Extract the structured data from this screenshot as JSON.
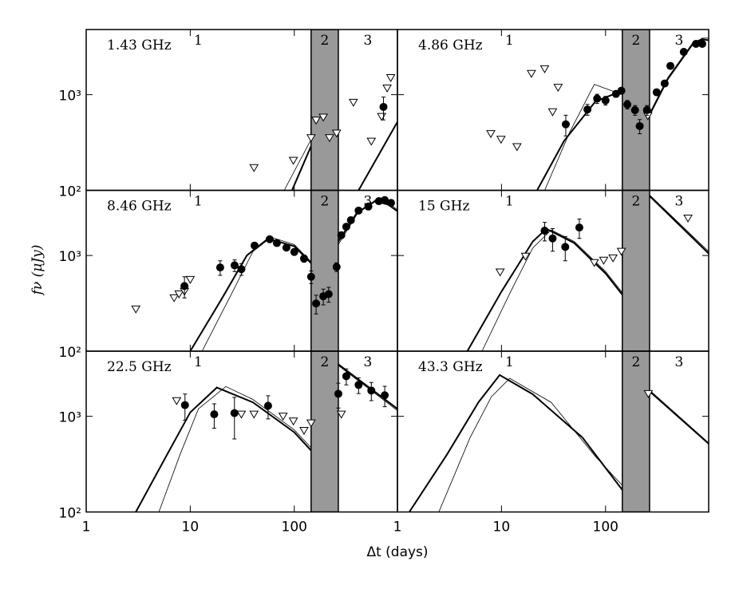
{
  "x_label": "Δt (days)",
  "y_label": "fν (μJy)",
  "chart_data": [
    {
      "type": "scatter",
      "title": "1.43 GHz",
      "xscale": "log",
      "yscale": "log",
      "xlim": [
        1,
        980
      ],
      "ylim": [
        100,
        4800
      ],
      "xticks": [
        1,
        10,
        100
      ],
      "yticks": [
        {
          "value": 100,
          "label": "10²"
        },
        {
          "value": 1000,
          "label": "10³"
        }
      ],
      "band": [
        145,
        265
      ],
      "band_color": "#999999",
      "region_labels": [
        "1",
        "2",
        "3"
      ],
      "detections": {
        "x": [
          720
        ],
        "values": [
          745
        ],
        "errors": [
          200
        ]
      },
      "upper_limits": {
        "x": [
          41,
          98,
          145,
          162,
          190,
          218,
          255,
          370,
          550,
          690,
          780,
          845
        ],
        "values": [
          172,
          205,
          354,
          540,
          580,
          354,
          395,
          830,
          325,
          590,
          1170,
          1500
        ]
      },
      "models": [
        {
          "x": [
            95,
            145
          ],
          "values": [
            100,
            290
          ],
          "width": 2
        },
        {
          "x": [
            80,
            145
          ],
          "values": [
            100,
            340
          ],
          "width": 0.8
        },
        {
          "x": [
            415,
            980
          ],
          "values": [
            100,
            520
          ],
          "width": 2
        }
      ]
    },
    {
      "type": "scatter",
      "title": "4.86 GHz",
      "xscale": "log",
      "yscale": "log",
      "xlim": [
        1,
        980
      ],
      "ylim": [
        100,
        4800
      ],
      "xticks": [
        1,
        10,
        100
      ],
      "yticks": [
        {
          "value": 100,
          "label": "10²"
        },
        {
          "value": 1000,
          "label": "10³"
        }
      ],
      "band": [
        145,
        265
      ],
      "band_color": "#999999",
      "region_labels": [
        "1",
        "2",
        "3"
      ],
      "detections": {
        "x": [
          41.5,
          67,
          83,
          100,
          126,
          142,
          162,
          192,
          213,
          250,
          310,
          370,
          420,
          565,
          740,
          850
        ],
        "values": [
          490,
          700,
          910,
          870,
          1020,
          1100,
          790,
          690,
          470,
          690,
          1060,
          1310,
          2000,
          2800,
          3400,
          3400
        ],
        "errors": [
          120,
          90,
          100,
          90,
          80,
          80,
          80,
          80,
          80,
          80,
          80,
          80,
          100,
          120,
          150,
          150
        ]
      },
      "upper_limits": {
        "x": [
          7.9,
          9.9,
          14.1,
          19.4,
          26,
          35,
          31,
          255
        ],
        "values": [
          390,
          340,
          285,
          1660,
          1860,
          1190,
          660,
          600
        ]
      },
      "models": [
        {
          "x": [
            22,
            40,
            80,
            145
          ],
          "values": [
            100,
            330,
            850,
            1100
          ],
          "width": 2
        },
        {
          "x": [
            26,
            45,
            78,
            145
          ],
          "values": [
            100,
            400,
            1280,
            1000
          ],
          "width": 0.8
        },
        {
          "x": [
            265,
            400,
            700,
            850,
            980
          ],
          "values": [
            620,
            1500,
            3500,
            3800,
            3700
          ],
          "width": 2
        },
        {
          "x": [
            265,
            400,
            700,
            850,
            980
          ],
          "values": [
            600,
            1450,
            3400,
            3900,
            3900
          ],
          "width": 0.8
        }
      ]
    },
    {
      "type": "scatter",
      "title": "8.46 GHz",
      "xscale": "log",
      "yscale": "log",
      "xlim": [
        1,
        980
      ],
      "ylim": [
        100,
        4800
      ],
      "xticks": [
        1,
        10,
        100
      ],
      "yticks": [
        {
          "value": 100,
          "label": "10²"
        },
        {
          "value": 1000,
          "label": "10³"
        }
      ],
      "band": [
        145,
        265
      ],
      "band_color": "#999999",
      "region_labels": [
        "1",
        "2",
        "3"
      ],
      "detections": {
        "x": [
          8.8,
          19.4,
          26.7,
          31,
          41.5,
          58,
          68,
          84,
          100,
          124,
          145,
          162,
          190,
          214,
          255,
          283,
          316,
          350,
          415,
          515,
          650,
          740,
          850
        ],
        "values": [
          480,
          750,
          790,
          720,
          1270,
          1480,
          1350,
          1210,
          1090,
          930,
          600,
          315,
          375,
          395,
          760,
          1630,
          2000,
          2340,
          2950,
          3250,
          3700,
          3800,
          3550
        ],
        "errors": [
          120,
          130,
          110,
          100,
          90,
          90,
          80,
          80,
          80,
          80,
          90,
          70,
          70,
          70,
          80,
          100,
          100,
          120,
          150,
          150,
          150,
          150,
          150
        ]
      },
      "upper_limits": {
        "x": [
          3.0,
          7.0,
          7.8,
          8.8,
          10
        ],
        "values": [
          275,
          360,
          395,
          420,
          560
        ]
      },
      "models": [
        {
          "x": [
            10,
            20,
            35,
            56,
            100,
            145
          ],
          "values": [
            100,
            350,
            1000,
            1500,
            1250,
            830
          ],
          "width": 2
        },
        {
          "x": [
            13,
            25,
            40,
            60,
            100,
            145
          ],
          "values": [
            100,
            400,
            1100,
            1550,
            1300,
            860
          ],
          "width": 0.8
        },
        {
          "x": [
            265,
            400,
            600,
            800,
            980
          ],
          "values": [
            1400,
            2800,
            3700,
            3400,
            2900
          ],
          "width": 2
        },
        {
          "x": [
            265,
            400,
            600,
            800,
            980
          ],
          "values": [
            1300,
            2700,
            3800,
            3600,
            3000
          ],
          "width": 0.8
        }
      ]
    },
    {
      "type": "scatter",
      "title": "15 GHz",
      "xscale": "log",
      "yscale": "log",
      "xlim": [
        1,
        980
      ],
      "ylim": [
        100,
        4800
      ],
      "xticks": [
        1,
        10,
        100
      ],
      "yticks": [
        {
          "value": 100,
          "label": "10²"
        },
        {
          "value": 1000,
          "label": "10³"
        }
      ],
      "band": [
        145,
        265
      ],
      "band_color": "#999999",
      "region_labels": [
        "1",
        "2",
        "3"
      ],
      "detections": {
        "x": [
          26,
          31,
          41,
          56
        ],
        "values": [
          1820,
          1510,
          1230,
          1960
        ],
        "errors": [
          400,
          400,
          350,
          450
        ]
      },
      "upper_limits": {
        "x": [
          9.7,
          17,
          78,
          96,
          118,
          142,
          620
        ],
        "values": [
          670,
          980,
          840,
          890,
          940,
          1100,
          2450
        ]
      },
      "models": [
        {
          "x": [
            4.7,
            10,
            20,
            27,
            50,
            100,
            145
          ],
          "values": [
            100,
            420,
            1400,
            1900,
            1350,
            650,
            390
          ],
          "width": 2
        },
        {
          "x": [
            6.5,
            12,
            20,
            30,
            50,
            100,
            145
          ],
          "values": [
            100,
            400,
            1200,
            1850,
            1400,
            680,
            410
          ],
          "width": 0.8
        },
        {
          "x": [
            265,
            980
          ],
          "values": [
            4200,
            1050
          ],
          "width": 2
        },
        {
          "x": [
            265,
            980
          ],
          "values": [
            4300,
            1100
          ],
          "width": 0.8
        }
      ]
    },
    {
      "type": "scatter",
      "title": "22.5 GHz",
      "xscale": "log",
      "yscale": "log",
      "xlim": [
        1,
        980
      ],
      "ylim": [
        100,
        4800
      ],
      "xticks": [
        1,
        10,
        100
      ],
      "yticks": [
        {
          "value": 100,
          "label": "10²"
        },
        {
          "value": 1000,
          "label": "10³"
        }
      ],
      "band": [
        145,
        265
      ],
      "band_color": "#999999",
      "region_labels": [
        "1",
        "2",
        "3"
      ],
      "detections": {
        "x": [
          8.9,
          17,
          26.6,
          56,
          265,
          316,
          415,
          550,
          740
        ],
        "values": [
          1310,
          1050,
          1080,
          1290,
          1720,
          2630,
          2130,
          1860,
          1660
        ],
        "errors": [
          400,
          300,
          500,
          350,
          500,
          500,
          400,
          400,
          400
        ]
      },
      "upper_limits": {
        "x": [
          7.4,
          31,
          41,
          78,
          98,
          124,
          145,
          283
        ],
        "values": [
          1450,
          1050,
          1050,
          1000,
          890,
          710,
          850,
          1050
        ]
      },
      "models": [
        {
          "x": [
            3,
            6,
            10,
            18,
            40,
            100,
            145
          ],
          "values": [
            100,
            400,
            1100,
            2000,
            1400,
            680,
            440
          ],
          "width": 2
        },
        {
          "x": [
            5,
            8,
            12,
            22,
            40,
            100,
            145
          ],
          "values": [
            100,
            400,
            1200,
            2050,
            1500,
            720,
            470
          ],
          "width": 0.8
        },
        {
          "x": [
            265,
            980
          ],
          "values": [
            3500,
            1200
          ],
          "width": 2
        },
        {
          "x": [
            265,
            980
          ],
          "values": [
            3400,
            1150
          ],
          "width": 0.8
        }
      ]
    },
    {
      "type": "scatter",
      "title": "43.3 GHz",
      "xscale": "log",
      "yscale": "log",
      "xlim": [
        1,
        980
      ],
      "ylim": [
        100,
        4800
      ],
      "xticks": [
        1,
        10,
        100
      ],
      "yticks": [
        {
          "value": 100,
          "label": "10²"
        },
        {
          "value": 1000,
          "label": "10³"
        }
      ],
      "band": [
        145,
        265
      ],
      "band_color": "#999999",
      "region_labels": [
        "1",
        "2",
        "3"
      ],
      "upper_limits": {
        "x": [
          258
        ],
        "values": [
          1720
        ]
      },
      "models": [
        {
          "x": [
            1.3,
            3,
            6,
            9.6,
            20,
            60,
            145
          ],
          "values": [
            100,
            400,
            1400,
            2700,
            1700,
            600,
            170
          ],
          "width": 2
        },
        {
          "x": [
            2.5,
            5,
            8,
            12,
            30,
            80,
            145
          ],
          "values": [
            100,
            600,
            1600,
            2500,
            1400,
            380,
            190
          ],
          "width": 0.8
        },
        {
          "x": [
            265,
            980
          ],
          "values": [
            1850,
            520
          ],
          "width": 2
        },
        {
          "x": [
            265,
            980
          ],
          "values": [
            1800,
            510
          ],
          "width": 0.8
        }
      ]
    }
  ]
}
